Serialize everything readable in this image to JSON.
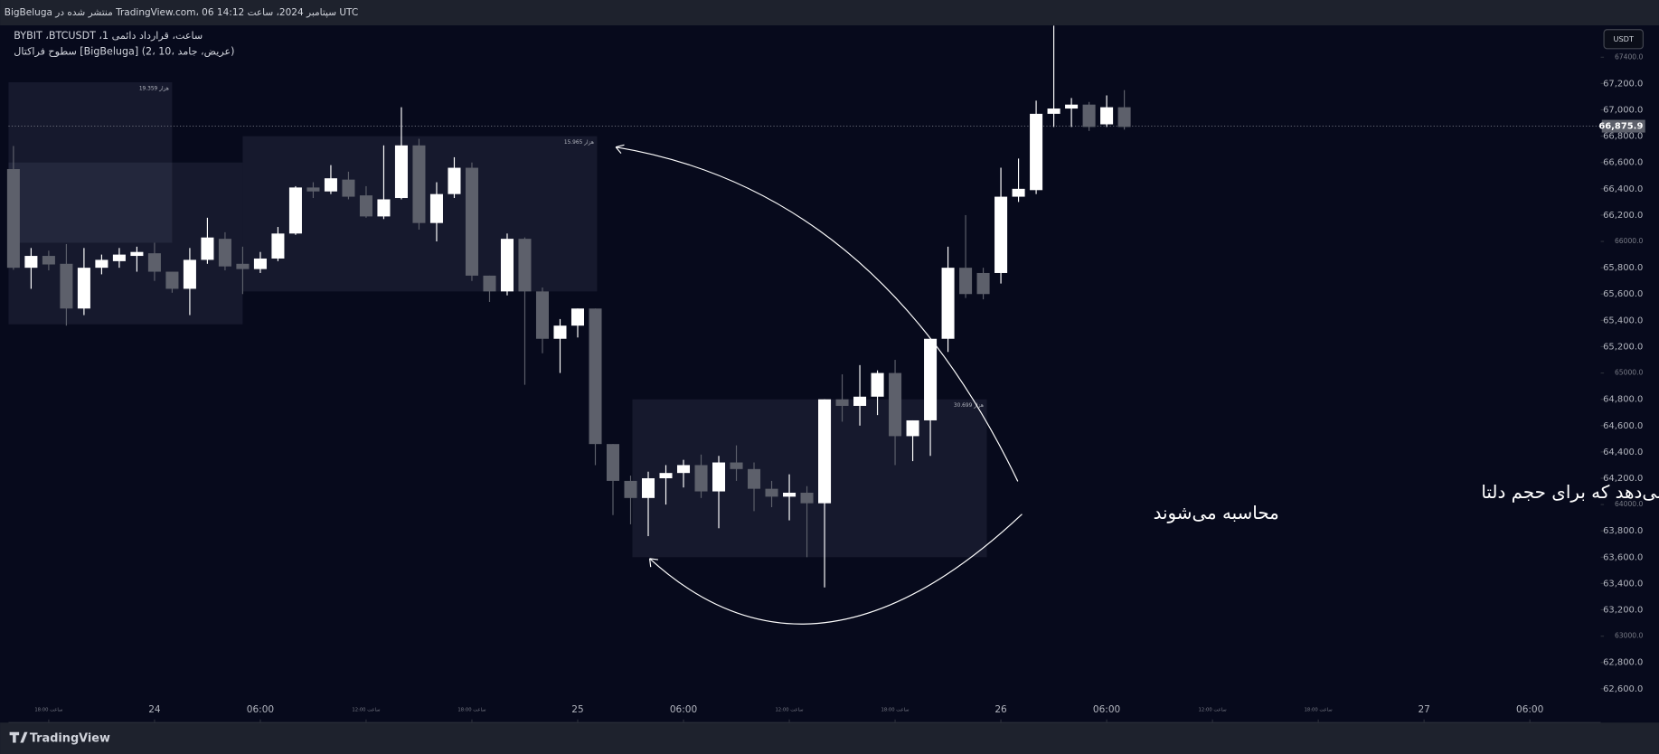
{
  "header": "BigBeluga منتشر شده در TradingView.com، 06 سپتامبر 2024، ساعت 14:12 UTC",
  "footer_logo": "TradingView",
  "currency_button": "USDT",
  "chart_data": {
    "type": "candlestick",
    "title": "BYBIT ،BTCUSDT ،1 ساعت، قرارداد دائمی",
    "subtitle": "سطوح فراکتال [BigBeluga] (2، 10، عریض، جامد)",
    "annotation": [
      "جعبه محدوده میله‌هایی را نشان می‌دهد که برای حجم دلتا",
      "محاسبه می‌شوند"
    ],
    "up_color": "#ffffff",
    "down_color": "#5d606b",
    "x": [
      16,
      17,
      18,
      19,
      20,
      21,
      22,
      23,
      24,
      25,
      26,
      27,
      28,
      29,
      30,
      31,
      32,
      33,
      34,
      35,
      36,
      37,
      38,
      39,
      40,
      41,
      42,
      43,
      44,
      45,
      46,
      47,
      48,
      49,
      50,
      51,
      52,
      53,
      54,
      55,
      56,
      57,
      58,
      59,
      60,
      61,
      62,
      63,
      64,
      65,
      66,
      67,
      68,
      69,
      70,
      71,
      72,
      73,
      74,
      75,
      76,
      77,
      78,
      79
    ],
    "open": [
      66550,
      65800,
      65890,
      65830,
      65490,
      65800,
      65850,
      65890,
      65910,
      65770,
      65640,
      65860,
      66020,
      65830,
      65790,
      65870,
      66060,
      66410,
      66380,
      66470,
      66350,
      66190,
      66330,
      66730,
      66140,
      66360,
      66560,
      65740,
      65620,
      66020,
      65620,
      65260,
      65360,
      65490,
      64460,
      64180,
      64050,
      64200,
      64240,
      64300,
      64100,
      64320,
      64270,
      64120,
      64060,
      64090,
      64010,
      64800,
      64750,
      64820,
      65000,
      64520,
      64640,
      65260,
      65800,
      65760,
      65760,
      66340,
      66390,
      66970,
      67010,
      67040,
      66890,
      67020
    ],
    "high": [
      66725,
      65950,
      65930,
      65980,
      65950,
      65900,
      65950,
      65960,
      65990,
      65770,
      65950,
      66180,
      66070,
      65960,
      65920,
      66110,
      66420,
      66450,
      66580,
      66530,
      66420,
      66730,
      67020,
      66780,
      66450,
      66640,
      66600,
      65740,
      66060,
      66030,
      65650,
      65410,
      65490,
      65490,
      64460,
      64220,
      64250,
      64300,
      64340,
      64380,
      64370,
      64450,
      64320,
      64180,
      64230,
      64140,
      64800,
      64990,
      65060,
      65020,
      65100,
      64640,
      65260,
      65960,
      66200,
      65800,
      66560,
      66630,
      67070,
      67640,
      67090,
      67060,
      67110,
      67150
    ],
    "low": [
      65785,
      65640,
      65780,
      65360,
      65440,
      65750,
      65800,
      65770,
      65700,
      65610,
      65440,
      65830,
      65780,
      65600,
      65760,
      65850,
      66050,
      66330,
      66360,
      66320,
      66180,
      66170,
      66320,
      66090,
      66000,
      66330,
      65700,
      65540,
      65590,
      64910,
      65150,
      65000,
      65270,
      64300,
      63920,
      63850,
      63760,
      64000,
      64130,
      64050,
      63820,
      64180,
      63950,
      63980,
      63880,
      63600,
      63370,
      64630,
      64600,
      64680,
      64300,
      64330,
      64370,
      65160,
      65570,
      65560,
      65680,
      66300,
      66360,
      66870,
      66870,
      66840,
      66870,
      66850
    ],
    "close": [
      65800,
      65890,
      65825,
      65490,
      65800,
      65860,
      65900,
      65920,
      65770,
      65640,
      65860,
      66030,
      65810,
      65790,
      65870,
      66060,
      66410,
      66380,
      66480,
      66340,
      66190,
      66320,
      66730,
      66140,
      66360,
      66560,
      65740,
      65620,
      66020,
      65620,
      65260,
      65360,
      65490,
      64460,
      64180,
      64050,
      64200,
      64240,
      64300,
      64100,
      64320,
      64270,
      64120,
      64060,
      64090,
      64010,
      64800,
      64750,
      64820,
      65000,
      64520,
      64640,
      65260,
      65800,
      65600,
      65600,
      66340,
      66400,
      66970,
      67010,
      67040,
      66870,
      67020,
      66870
    ],
    "zones": [
      {
        "x": [
          15.72,
          25
        ],
        "y": [
          65990,
          67210
        ],
        "label": "19.359 هزار"
      },
      {
        "x": [
          15.72,
          29
        ],
        "y": [
          65370,
          66600
        ]
      },
      {
        "x": [
          29,
          49.1
        ],
        "y": [
          65620,
          66800
        ],
        "label": "15.965 هزار"
      },
      {
        "x": [
          51.1,
          71.2
        ],
        "y": [
          63600,
          64800
        ],
        "label": "30.699 هزار"
      }
    ],
    "last_price": {
      "value": 66875.9,
      "label": "66,875.9"
    },
    "xlim": [
      15.72,
      106.02
    ],
    "xticks": [
      {
        "value": 18,
        "label": "ساعت 18:00"
      },
      {
        "value": 24,
        "label": "24"
      },
      {
        "value": 30,
        "label": "06:00"
      },
      {
        "value": 36,
        "label": "ساعت 12:00"
      },
      {
        "value": 42,
        "label": "ساعت 18:00"
      },
      {
        "value": 48,
        "label": "25"
      },
      {
        "value": 54,
        "label": "06:00"
      },
      {
        "value": 60,
        "label": "ساعت 12:00"
      },
      {
        "value": 66,
        "label": "ساعت 18:00"
      },
      {
        "value": 72,
        "label": "26"
      },
      {
        "value": 78,
        "label": "06:00"
      },
      {
        "value": 84,
        "label": "ساعت 12:00"
      },
      {
        "value": 90,
        "label": "ساعت 18:00"
      },
      {
        "value": 96,
        "label": "27"
      },
      {
        "value": 102,
        "label": "06:00"
      }
    ],
    "ylim": [
      62343,
      67634
    ],
    "yticks": [
      {
        "value": 67400,
        "label": "67400.0"
      },
      {
        "value": 67200,
        "label": "67,200.0"
      },
      {
        "value": 67000,
        "label": "67,000.0"
      },
      {
        "value": 66800,
        "label": "66,800.0"
      },
      {
        "value": 66600,
        "label": "66,600.0"
      },
      {
        "value": 66400,
        "label": "66,400.0"
      },
      {
        "value": 66200,
        "label": "66,200.0"
      },
      {
        "value": 66000,
        "label": "66000.0"
      },
      {
        "value": 65800,
        "label": "65,800.0"
      },
      {
        "value": 65600,
        "label": "65,600.0"
      },
      {
        "value": 65400,
        "label": "65,400.0"
      },
      {
        "value": 65200,
        "label": "65,200.0"
      },
      {
        "value": 65000,
        "label": "65000.0"
      },
      {
        "value": 64800,
        "label": "64,800.0"
      },
      {
        "value": 64600,
        "label": "64,600.0"
      },
      {
        "value": 64400,
        "label": "64,400.0"
      },
      {
        "value": 64200,
        "label": "64,200.0"
      },
      {
        "value": 64000,
        "label": "64000.0"
      },
      {
        "value": 63800,
        "label": "63,800.0"
      },
      {
        "value": 63600,
        "label": "63,600.0"
      },
      {
        "value": 63400,
        "label": "63,400.0"
      },
      {
        "value": 63200,
        "label": "63,200.0"
      },
      {
        "value": 63000,
        "label": "63000.0"
      },
      {
        "value": 62800,
        "label": "62,800.0"
      },
      {
        "value": 62600,
        "label": "62,600.0"
      }
    ]
  }
}
